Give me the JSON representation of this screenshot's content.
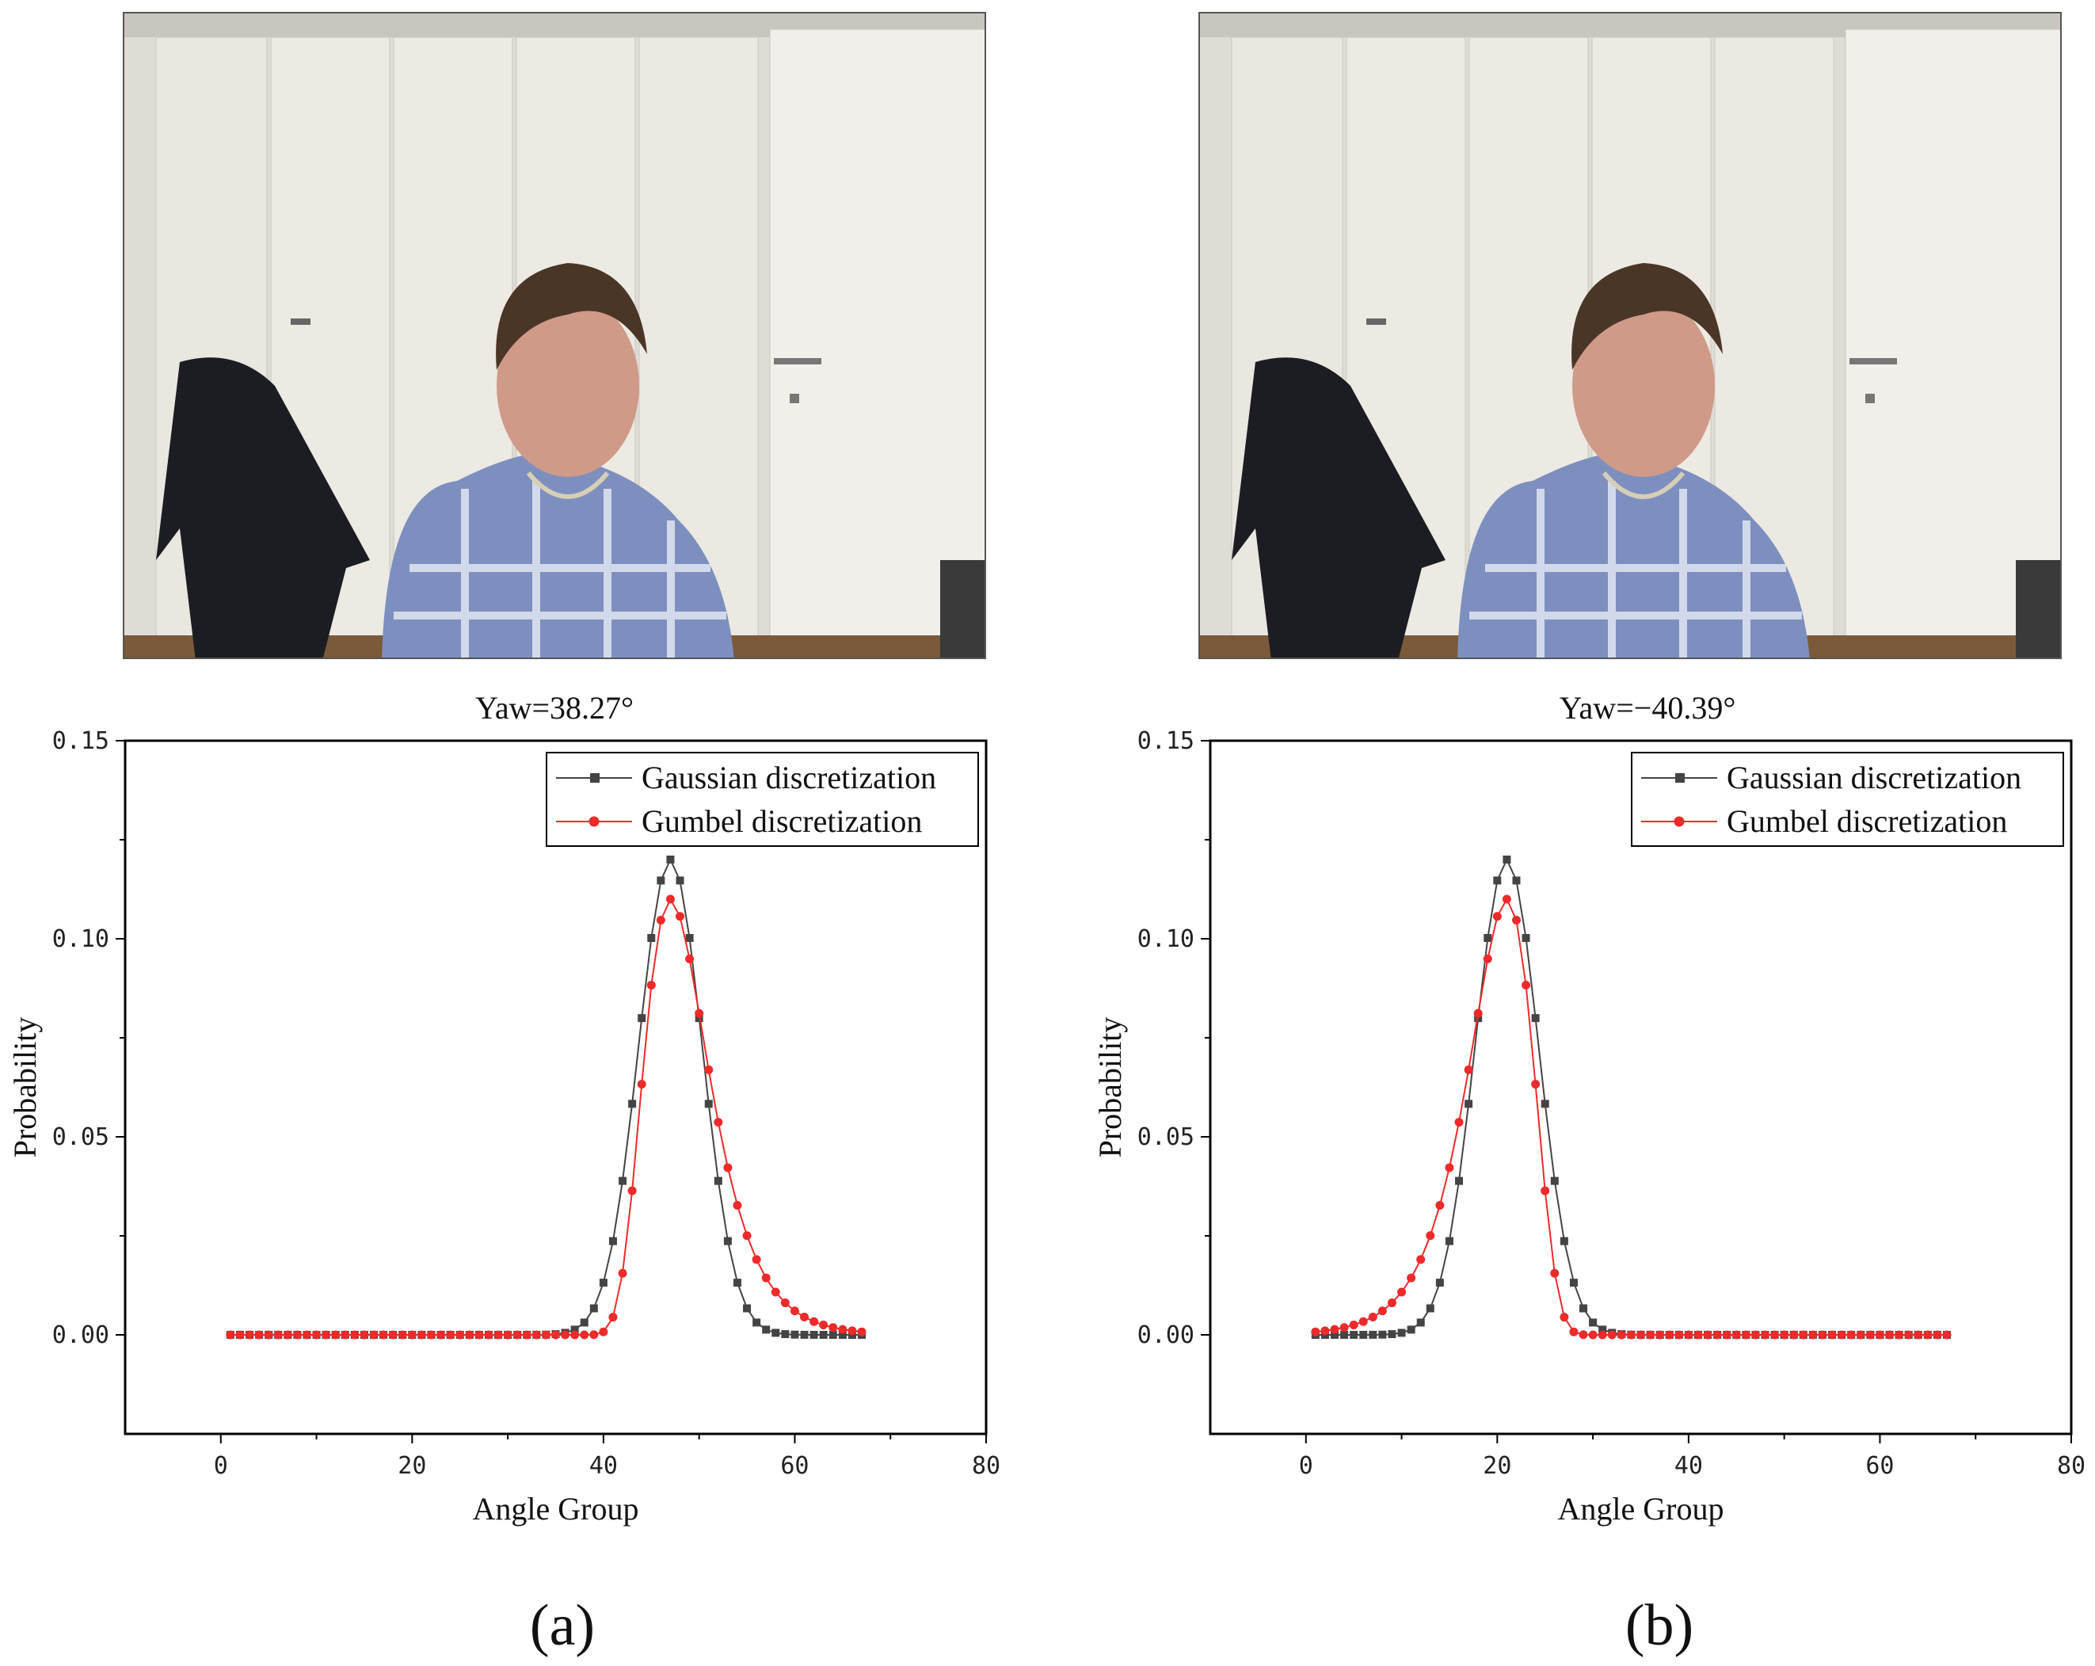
{
  "figure": {
    "panels": [
      {
        "id": "a",
        "label": "(a)",
        "yaw_caption": "Yaw=38.27°"
      },
      {
        "id": "b",
        "label": "(b)",
        "yaw_caption": "Yaw=−40.39°"
      }
    ]
  },
  "colors": {
    "gaussian": "#444444",
    "gumbel": "#ee2a2a",
    "axis": "#000000"
  },
  "chart_data": [
    {
      "type": "line",
      "panel": "a",
      "title": "Yaw=38.27°",
      "xlabel": "Angle Group",
      "ylabel": "Probability",
      "xlim": [
        -10,
        80
      ],
      "ylim": [
        -0.025,
        0.15
      ],
      "xticks": [
        "0",
        "20",
        "40",
        "60",
        "80"
      ],
      "yticks": [
        "0.00",
        "0.05",
        "0.10",
        "0.15"
      ],
      "legend": {
        "position": "top-right",
        "entries": [
          "Gaussian discretization",
          "Gumbel discretization"
        ]
      },
      "series": [
        {
          "name": "Gaussian discretization",
          "marker": "square",
          "mu": 47,
          "sigma": 3.33,
          "peak": 0.12,
          "x_start": 1,
          "x_end": 67
        },
        {
          "name": "Gumbel discretization",
          "marker": "circle",
          "mu": 47,
          "beta": 3.35,
          "peak": 0.11,
          "mirror": false,
          "x_start": 1,
          "x_end": 67
        }
      ]
    },
    {
      "type": "line",
      "panel": "b",
      "title": "Yaw=−40.39°",
      "xlabel": "Angle Group",
      "ylabel": "Probability",
      "xlim": [
        -10,
        80
      ],
      "ylim": [
        -0.025,
        0.15
      ],
      "xticks": [
        "0",
        "20",
        "40",
        "60",
        "80"
      ],
      "yticks": [
        "0.00",
        "0.05",
        "0.10",
        "0.15"
      ],
      "legend": {
        "position": "top-right",
        "entries": [
          "Gaussian discretization",
          "Gumbel discretization"
        ]
      },
      "series": [
        {
          "name": "Gaussian discretization",
          "marker": "square",
          "mu": 21,
          "sigma": 3.33,
          "peak": 0.12,
          "x_start": 1,
          "x_end": 67
        },
        {
          "name": "Gumbel discretization",
          "marker": "circle",
          "mu": 21,
          "beta": 3.35,
          "peak": 0.11,
          "mirror": true,
          "x_start": 1,
          "x_end": 67
        }
      ]
    }
  ]
}
